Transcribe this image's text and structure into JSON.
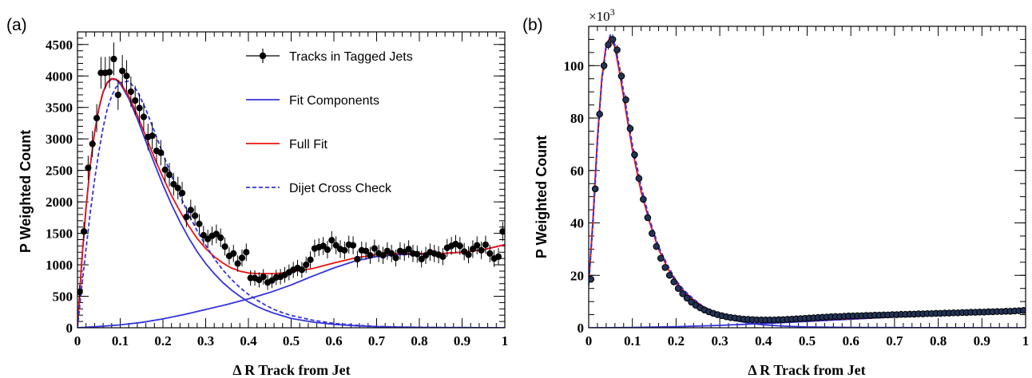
{
  "chart_data": [
    {
      "panel": "(a)",
      "type": "scatter",
      "xlabel": "Δ R Track from Jet",
      "ylabel": "P Weighted Count",
      "xlim": [
        0,
        1
      ],
      "ylim": [
        0,
        4700
      ],
      "xticks": [
        0,
        0.1,
        0.2,
        0.3,
        0.4,
        0.5,
        0.6,
        0.7,
        0.8,
        0.9,
        1
      ],
      "xtick_labels": [
        "0",
        "0.1",
        "0.2",
        "0.3",
        "0.4",
        "0.5",
        "0.6",
        "0.7",
        "0.8",
        "0.9",
        "1"
      ],
      "yticks": [
        0,
        500,
        1000,
        1500,
        2000,
        2500,
        3000,
        3500,
        4000,
        4500
      ],
      "ytick_labels": [
        "0",
        "500",
        "1000",
        "1500",
        "2000",
        "2500",
        "3000",
        "3500",
        "4000",
        "4500"
      ],
      "legend": [
        {
          "label": "Tracks in Tagged Jets",
          "style": "points",
          "color": "#000000"
        },
        {
          "label": "Fit Components",
          "style": "solid",
          "color": "#3333dd"
        },
        {
          "label": "Full Fit",
          "style": "solid",
          "color": "#ee1111"
        },
        {
          "label": "Dijet Cross Check",
          "style": "dashed",
          "color": "#3333dd"
        }
      ],
      "legend_position": "top-right",
      "series": [
        {
          "name": "Tracks in Tagged Jets",
          "style": "points",
          "color": "#000000",
          "x": [
            0.005,
            0.015,
            0.025,
            0.035,
            0.045,
            0.055,
            0.065,
            0.075,
            0.085,
            0.095,
            0.105,
            0.115,
            0.125,
            0.135,
            0.145,
            0.155,
            0.165,
            0.175,
            0.185,
            0.195,
            0.205,
            0.215,
            0.225,
            0.235,
            0.245,
            0.255,
            0.265,
            0.275,
            0.285,
            0.295,
            0.305,
            0.315,
            0.325,
            0.335,
            0.345,
            0.355,
            0.365,
            0.375,
            0.385,
            0.395,
            0.405,
            0.415,
            0.425,
            0.435,
            0.445,
            0.455,
            0.465,
            0.475,
            0.485,
            0.495,
            0.505,
            0.515,
            0.525,
            0.535,
            0.545,
            0.555,
            0.565,
            0.575,
            0.585,
            0.595,
            0.605,
            0.615,
            0.625,
            0.635,
            0.645,
            0.655,
            0.665,
            0.675,
            0.685,
            0.695,
            0.705,
            0.715,
            0.725,
            0.735,
            0.745,
            0.755,
            0.765,
            0.775,
            0.785,
            0.795,
            0.805,
            0.815,
            0.825,
            0.835,
            0.845,
            0.855,
            0.865,
            0.875,
            0.885,
            0.895,
            0.905,
            0.915,
            0.925,
            0.935,
            0.945,
            0.955,
            0.965,
            0.975,
            0.985,
            0.995
          ],
          "y": [
            570,
            1530,
            2540,
            2920,
            3330,
            4050,
            4050,
            4060,
            4270,
            3700,
            4080,
            4000,
            3750,
            3610,
            3490,
            3350,
            3030,
            3050,
            2810,
            2780,
            2510,
            2430,
            2280,
            2220,
            2140,
            1760,
            1870,
            1780,
            1650,
            1470,
            1410,
            1460,
            1490,
            1430,
            1290,
            1140,
            1180,
            1020,
            1110,
            1200,
            790,
            790,
            760,
            810,
            720,
            750,
            800,
            810,
            840,
            880,
            920,
            950,
            920,
            1000,
            1080,
            1260,
            1280,
            1300,
            1240,
            1390,
            1310,
            1250,
            1230,
            1320,
            1310,
            1090,
            1230,
            1220,
            1150,
            1260,
            1180,
            1150,
            1220,
            1180,
            1110,
            1220,
            1200,
            1250,
            1180,
            1170,
            1090,
            1150,
            1200,
            1180,
            1160,
            1130,
            1270,
            1300,
            1330,
            1300,
            1210,
            1160,
            1250,
            1310,
            1230,
            1320,
            1180,
            1100,
            1130,
            1530
          ]
        },
        {
          "name": "Fit Components",
          "style": "solid",
          "color": "#3333dd",
          "x": [
            0,
            0.01,
            0.02,
            0.03,
            0.04,
            0.05,
            0.06,
            0.07,
            0.08,
            0.09,
            0.1,
            0.12,
            0.14,
            0.16,
            0.18,
            0.2,
            0.22,
            0.24,
            0.26,
            0.28,
            0.3,
            0.32,
            0.34,
            0.36,
            0.38,
            0.4,
            0.42,
            0.44,
            0.46,
            0.48,
            0.5,
            0.55,
            0.6,
            0.65,
            0.7,
            0.75,
            0.8,
            0.85,
            0.9,
            0.95,
            1
          ],
          "y": [
            0,
            1050,
            1900,
            2580,
            3100,
            3480,
            3740,
            3890,
            3950,
            3940,
            3880,
            3640,
            3320,
            2960,
            2610,
            2270,
            1960,
            1680,
            1430,
            1210,
            1020,
            860,
            720,
            600,
            500,
            410,
            340,
            280,
            230,
            190,
            150,
            90,
            55,
            32,
            18,
            10,
            6,
            3,
            2,
            1,
            0
          ]
        },
        {
          "name": "Fit Components",
          "style": "solid",
          "color": "#3333dd",
          "x": [
            0,
            0.05,
            0.1,
            0.15,
            0.2,
            0.25,
            0.3,
            0.35,
            0.4,
            0.45,
            0.5,
            0.55,
            0.6,
            0.65,
            0.7,
            0.75,
            0.8,
            0.85,
            0.9,
            0.95,
            1
          ],
          "y": [
            0,
            20,
            45,
            85,
            140,
            210,
            290,
            370,
            460,
            560,
            680,
            820,
            950,
            1060,
            1130,
            1160,
            1170,
            1180,
            1200,
            1240,
            1320
          ]
        },
        {
          "name": "Full Fit",
          "style": "solid",
          "color": "#ee1111",
          "x": [
            0,
            0.01,
            0.02,
            0.03,
            0.04,
            0.05,
            0.06,
            0.07,
            0.08,
            0.09,
            0.1,
            0.12,
            0.14,
            0.16,
            0.18,
            0.2,
            0.22,
            0.24,
            0.26,
            0.28,
            0.3,
            0.32,
            0.34,
            0.36,
            0.38,
            0.4,
            0.42,
            0.44,
            0.46,
            0.48,
            0.5,
            0.55,
            0.6,
            0.65,
            0.7,
            0.75,
            0.8,
            0.85,
            0.9,
            0.95,
            1
          ],
          "y": [
            0,
            1050,
            1900,
            2580,
            3100,
            3490,
            3750,
            3900,
            3960,
            3950,
            3900,
            3680,
            3380,
            3040,
            2700,
            2390,
            2100,
            1850,
            1620,
            1420,
            1260,
            1130,
            1030,
            950,
            900,
            870,
            860,
            860,
            860,
            870,
            890,
            940,
            1030,
            1110,
            1160,
            1180,
            1180,
            1180,
            1200,
            1240,
            1320
          ]
        },
        {
          "name": "Dijet Cross Check",
          "style": "dashed",
          "color": "#3333dd",
          "x": [
            0,
            0.01,
            0.02,
            0.03,
            0.04,
            0.05,
            0.06,
            0.07,
            0.08,
            0.09,
            0.1,
            0.12,
            0.14,
            0.16,
            0.18,
            0.2,
            0.22,
            0.24,
            0.26,
            0.28,
            0.3,
            0.32,
            0.34,
            0.36,
            0.38,
            0.4,
            0.42,
            0.44,
            0.46,
            0.48,
            0.5,
            0.55,
            0.6,
            0.65,
            0.7,
            0.75,
            0.8,
            0.85,
            0.9,
            0.95,
            1
          ],
          "y": [
            0,
            650,
            1250,
            1830,
            2350,
            2800,
            3180,
            3480,
            3680,
            3820,
            3890,
            3920,
            3760,
            3470,
            3120,
            2760,
            2420,
            2100,
            1800,
            1540,
            1310,
            1100,
            920,
            770,
            640,
            530,
            440,
            360,
            290,
            240,
            195,
            120,
            70,
            40,
            22,
            12,
            7,
            4,
            2,
            1,
            0
          ]
        }
      ]
    },
    {
      "panel": "(b)",
      "type": "scatter",
      "xlabel": "Δ R Track from Jet",
      "ylabel": "P Weighted Count",
      "multiplier": "×10",
      "multiplier_exp": "3",
      "xlim": [
        0,
        1
      ],
      "ylim": [
        0,
        115
      ],
      "xticks": [
        0,
        0.1,
        0.2,
        0.3,
        0.4,
        0.5,
        0.6,
        0.7,
        0.8,
        0.9,
        1
      ],
      "xtick_labels": [
        "0",
        "0.1",
        "0.2",
        "0.3",
        "0.4",
        "0.5",
        "0.6",
        "0.7",
        "0.8",
        "0.9",
        "1"
      ],
      "yticks": [
        0,
        20,
        40,
        60,
        80,
        100
      ],
      "ytick_labels": [
        "0",
        "20",
        "40",
        "60",
        "80",
        "100"
      ],
      "series": [
        {
          "style": "points",
          "color": "#000000",
          "x": [
            0.005,
            0.015,
            0.025,
            0.035,
            0.045,
            0.055,
            0.065,
            0.075,
            0.085,
            0.095,
            0.105,
            0.115,
            0.125,
            0.135,
            0.145,
            0.155,
            0.165,
            0.175,
            0.185,
            0.195,
            0.205,
            0.215,
            0.225,
            0.235,
            0.245,
            0.255,
            0.265,
            0.275,
            0.285,
            0.295,
            0.305,
            0.315,
            0.325,
            0.335,
            0.345,
            0.355,
            0.365,
            0.375,
            0.385,
            0.395,
            0.405,
            0.415,
            0.425,
            0.435,
            0.445,
            0.455,
            0.465,
            0.475,
            0.485,
            0.495,
            0.505,
            0.515,
            0.525,
            0.535,
            0.545,
            0.555,
            0.565,
            0.575,
            0.585,
            0.595,
            0.605,
            0.615,
            0.625,
            0.635,
            0.645,
            0.655,
            0.665,
            0.675,
            0.685,
            0.695,
            0.705,
            0.715,
            0.725,
            0.735,
            0.745,
            0.755,
            0.765,
            0.775,
            0.785,
            0.795,
            0.805,
            0.815,
            0.825,
            0.835,
            0.845,
            0.855,
            0.865,
            0.875,
            0.885,
            0.895,
            0.905,
            0.915,
            0.925,
            0.935,
            0.945,
            0.955,
            0.965,
            0.975,
            0.985,
            0.995
          ],
          "y": [
            18.5,
            53,
            81.5,
            100,
            108,
            110,
            106,
            96,
            87,
            76,
            66,
            57,
            49,
            42,
            36,
            31,
            26.5,
            23,
            20,
            17.5,
            15,
            13,
            11.3,
            9.8,
            8.6,
            7.6,
            6.8,
            6.1,
            5.5,
            5.0,
            4.6,
            4.2,
            3.9,
            3.7,
            3.5,
            3.3,
            3.2,
            3.1,
            3.0,
            3.0,
            3.0,
            3.0,
            3.0,
            3.1,
            3.1,
            3.2,
            3.3,
            3.4,
            3.5,
            3.6,
            3.7,
            3.8,
            3.9,
            4.0,
            4.1,
            4.2,
            4.3,
            4.3,
            4.4,
            4.5,
            4.5,
            4.6,
            4.6,
            4.7,
            4.7,
            4.8,
            4.8,
            4.9,
            4.9,
            5.0,
            5.0,
            5.1,
            5.1,
            5.2,
            5.2,
            5.3,
            5.3,
            5.4,
            5.4,
            5.5,
            5.5,
            5.6,
            5.6,
            5.7,
            5.7,
            5.8,
            5.8,
            5.9,
            5.9,
            6.0,
            6.0,
            6.1,
            6.1,
            6.2,
            6.2,
            6.3,
            6.3,
            6.4,
            6.5,
            6.6
          ]
        },
        {
          "style": "solid",
          "color": "#3333dd",
          "x": [
            0,
            0.01,
            0.02,
            0.03,
            0.04,
            0.05,
            0.06,
            0.07,
            0.08,
            0.09,
            0.1,
            0.12,
            0.14,
            0.16,
            0.18,
            0.2,
            0.22,
            0.24,
            0.26,
            0.28,
            0.3,
            0.32,
            0.34,
            0.36,
            0.38,
            0.4,
            0.45,
            0.5,
            0.6,
            0.7,
            0.8,
            0.9,
            1
          ],
          "y": [
            17,
            42,
            72,
            95,
            108,
            111,
            107,
            98,
            88,
            78,
            68,
            52,
            40,
            30,
            23,
            17,
            13,
            10,
            7.5,
            5.8,
            4.4,
            3.4,
            2.6,
            2.0,
            1.5,
            1.1,
            0.6,
            0.3,
            0.1,
            0.05,
            0.02,
            0.01,
            0
          ]
        },
        {
          "style": "solid",
          "color": "#3333dd",
          "x": [
            0,
            0.1,
            0.2,
            0.3,
            0.4,
            0.5,
            0.6,
            0.7,
            0.8,
            0.9,
            1
          ],
          "y": [
            0,
            0.1,
            0.4,
            0.9,
            1.6,
            2.4,
            3.3,
            4.1,
            4.9,
            5.7,
            6.6
          ]
        },
        {
          "style": "solid",
          "color": "#ee1111",
          "x": [
            0,
            0.01,
            0.02,
            0.03,
            0.04,
            0.05,
            0.06,
            0.07,
            0.08,
            0.09,
            0.1,
            0.12,
            0.14,
            0.16,
            0.18,
            0.2,
            0.22,
            0.24,
            0.26,
            0.28,
            0.3,
            0.32,
            0.34,
            0.36,
            0.38,
            0.4,
            0.45,
            0.5,
            0.6,
            0.7,
            0.8,
            0.9,
            1
          ],
          "y": [
            17,
            42,
            72,
            95,
            108,
            111,
            107,
            98,
            88,
            78,
            68,
            52,
            40,
            30,
            23,
            17.4,
            13.6,
            10.6,
            8.3,
            6.6,
            5.3,
            4.4,
            3.7,
            3.2,
            2.9,
            2.7,
            2.6,
            2.7,
            3.4,
            4.1,
            4.9,
            5.7,
            6.6
          ]
        },
        {
          "style": "dashed",
          "color": "#3333dd",
          "x": [
            0,
            0.01,
            0.02,
            0.03,
            0.04,
            0.05,
            0.06,
            0.07,
            0.08,
            0.09,
            0.1,
            0.12,
            0.14,
            0.16,
            0.18,
            0.2,
            0.22,
            0.24,
            0.26,
            0.28,
            0.3,
            0.32,
            0.34,
            0.36,
            0.38,
            0.4,
            0.45,
            0.5,
            0.6,
            0.7,
            0.8,
            0.9,
            1
          ],
          "y": [
            16,
            40,
            70,
            94,
            107,
            112,
            108,
            100,
            90,
            80,
            70,
            54,
            41,
            31,
            24,
            18,
            14,
            11,
            8.3,
            6.4,
            5.0,
            4.0,
            3.3,
            2.8,
            2.5,
            2.3,
            2.3,
            2.5,
            3.3,
            4.1,
            4.9,
            5.7,
            6.6
          ]
        }
      ]
    }
  ]
}
